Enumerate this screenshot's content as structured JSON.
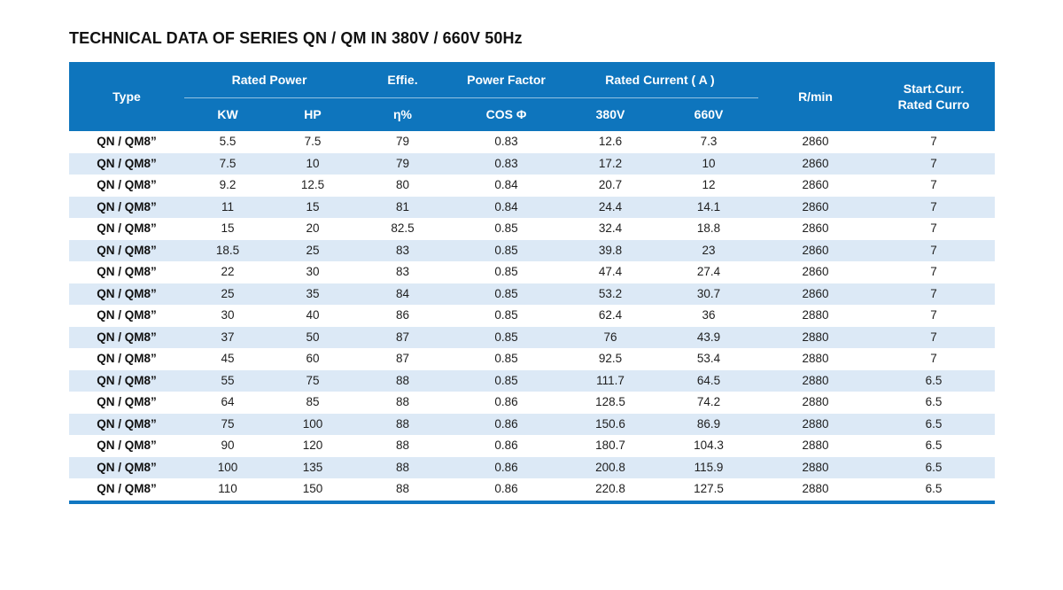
{
  "title": "TECHNICAL DATA OF SERIES QN / QM IN 380V / 660V 50Hz",
  "colors": {
    "header_bg": "#0e75bd",
    "stripe": "#dce9f6",
    "bottom_bar": "#1177c2",
    "title_color": "#111111"
  },
  "table": {
    "header": {
      "type": "Type",
      "rated_power": "Rated Power",
      "kw": "KW",
      "hp": "HP",
      "effie": "Effie.",
      "eta": "η%",
      "power_factor": "Power Factor",
      "cos": "COS Φ",
      "rated_current": "Rated Current ( A )",
      "v380": "380V",
      "v660": "660V",
      "rmin": "R/min",
      "start_curr_line1": "Start.Curr.",
      "start_curr_line2": "Rated Curro"
    },
    "rows": [
      [
        "QN / QM8”",
        "5.5",
        "7.5",
        "79",
        "0.83",
        "12.6",
        "7.3",
        "2860",
        "7"
      ],
      [
        "QN / QM8”",
        "7.5",
        "10",
        "79",
        "0.83",
        "17.2",
        "10",
        "2860",
        "7"
      ],
      [
        "QN / QM8”",
        "9.2",
        "12.5",
        "80",
        "0.84",
        "20.7",
        "12",
        "2860",
        "7"
      ],
      [
        "QN / QM8”",
        "11",
        "15",
        "81",
        "0.84",
        "24.4",
        "14.1",
        "2860",
        "7"
      ],
      [
        "QN / QM8”",
        "15",
        "20",
        "82.5",
        "0.85",
        "32.4",
        "18.8",
        "2860",
        "7"
      ],
      [
        "QN / QM8”",
        "18.5",
        "25",
        "83",
        "0.85",
        "39.8",
        "23",
        "2860",
        "7"
      ],
      [
        "QN / QM8”",
        "22",
        "30",
        "83",
        "0.85",
        "47.4",
        "27.4",
        "2860",
        "7"
      ],
      [
        "QN / QM8”",
        "25",
        "35",
        "84",
        "0.85",
        "53.2",
        "30.7",
        "2860",
        "7"
      ],
      [
        "QN / QM8”",
        "30",
        "40",
        "86",
        "0.85",
        "62.4",
        "36",
        "2880",
        "7"
      ],
      [
        "QN / QM8”",
        "37",
        "50",
        "87",
        "0.85",
        "76",
        "43.9",
        "2880",
        "7"
      ],
      [
        "QN / QM8”",
        "45",
        "60",
        "87",
        "0.85",
        "92.5",
        "53.4",
        "2880",
        "7"
      ],
      [
        "QN / QM8”",
        "55",
        "75",
        "88",
        "0.85",
        "111.7",
        "64.5",
        "2880",
        "6.5"
      ],
      [
        "QN / QM8”",
        "64",
        "85",
        "88",
        "0.86",
        "128.5",
        "74.2",
        "2880",
        "6.5"
      ],
      [
        "QN / QM8”",
        "75",
        "100",
        "88",
        "0.86",
        "150.6",
        "86.9",
        "2880",
        "6.5"
      ],
      [
        "QN / QM8”",
        "90",
        "120",
        "88",
        "0.86",
        "180.7",
        "104.3",
        "2880",
        "6.5"
      ],
      [
        "QN / QM8”",
        "100",
        "135",
        "88",
        "0.86",
        "200.8",
        "115.9",
        "2880",
        "6.5"
      ],
      [
        "QN / QM8”",
        "110",
        "150",
        "88",
        "0.86",
        "220.8",
        "127.5",
        "2880",
        "6.5"
      ]
    ]
  }
}
